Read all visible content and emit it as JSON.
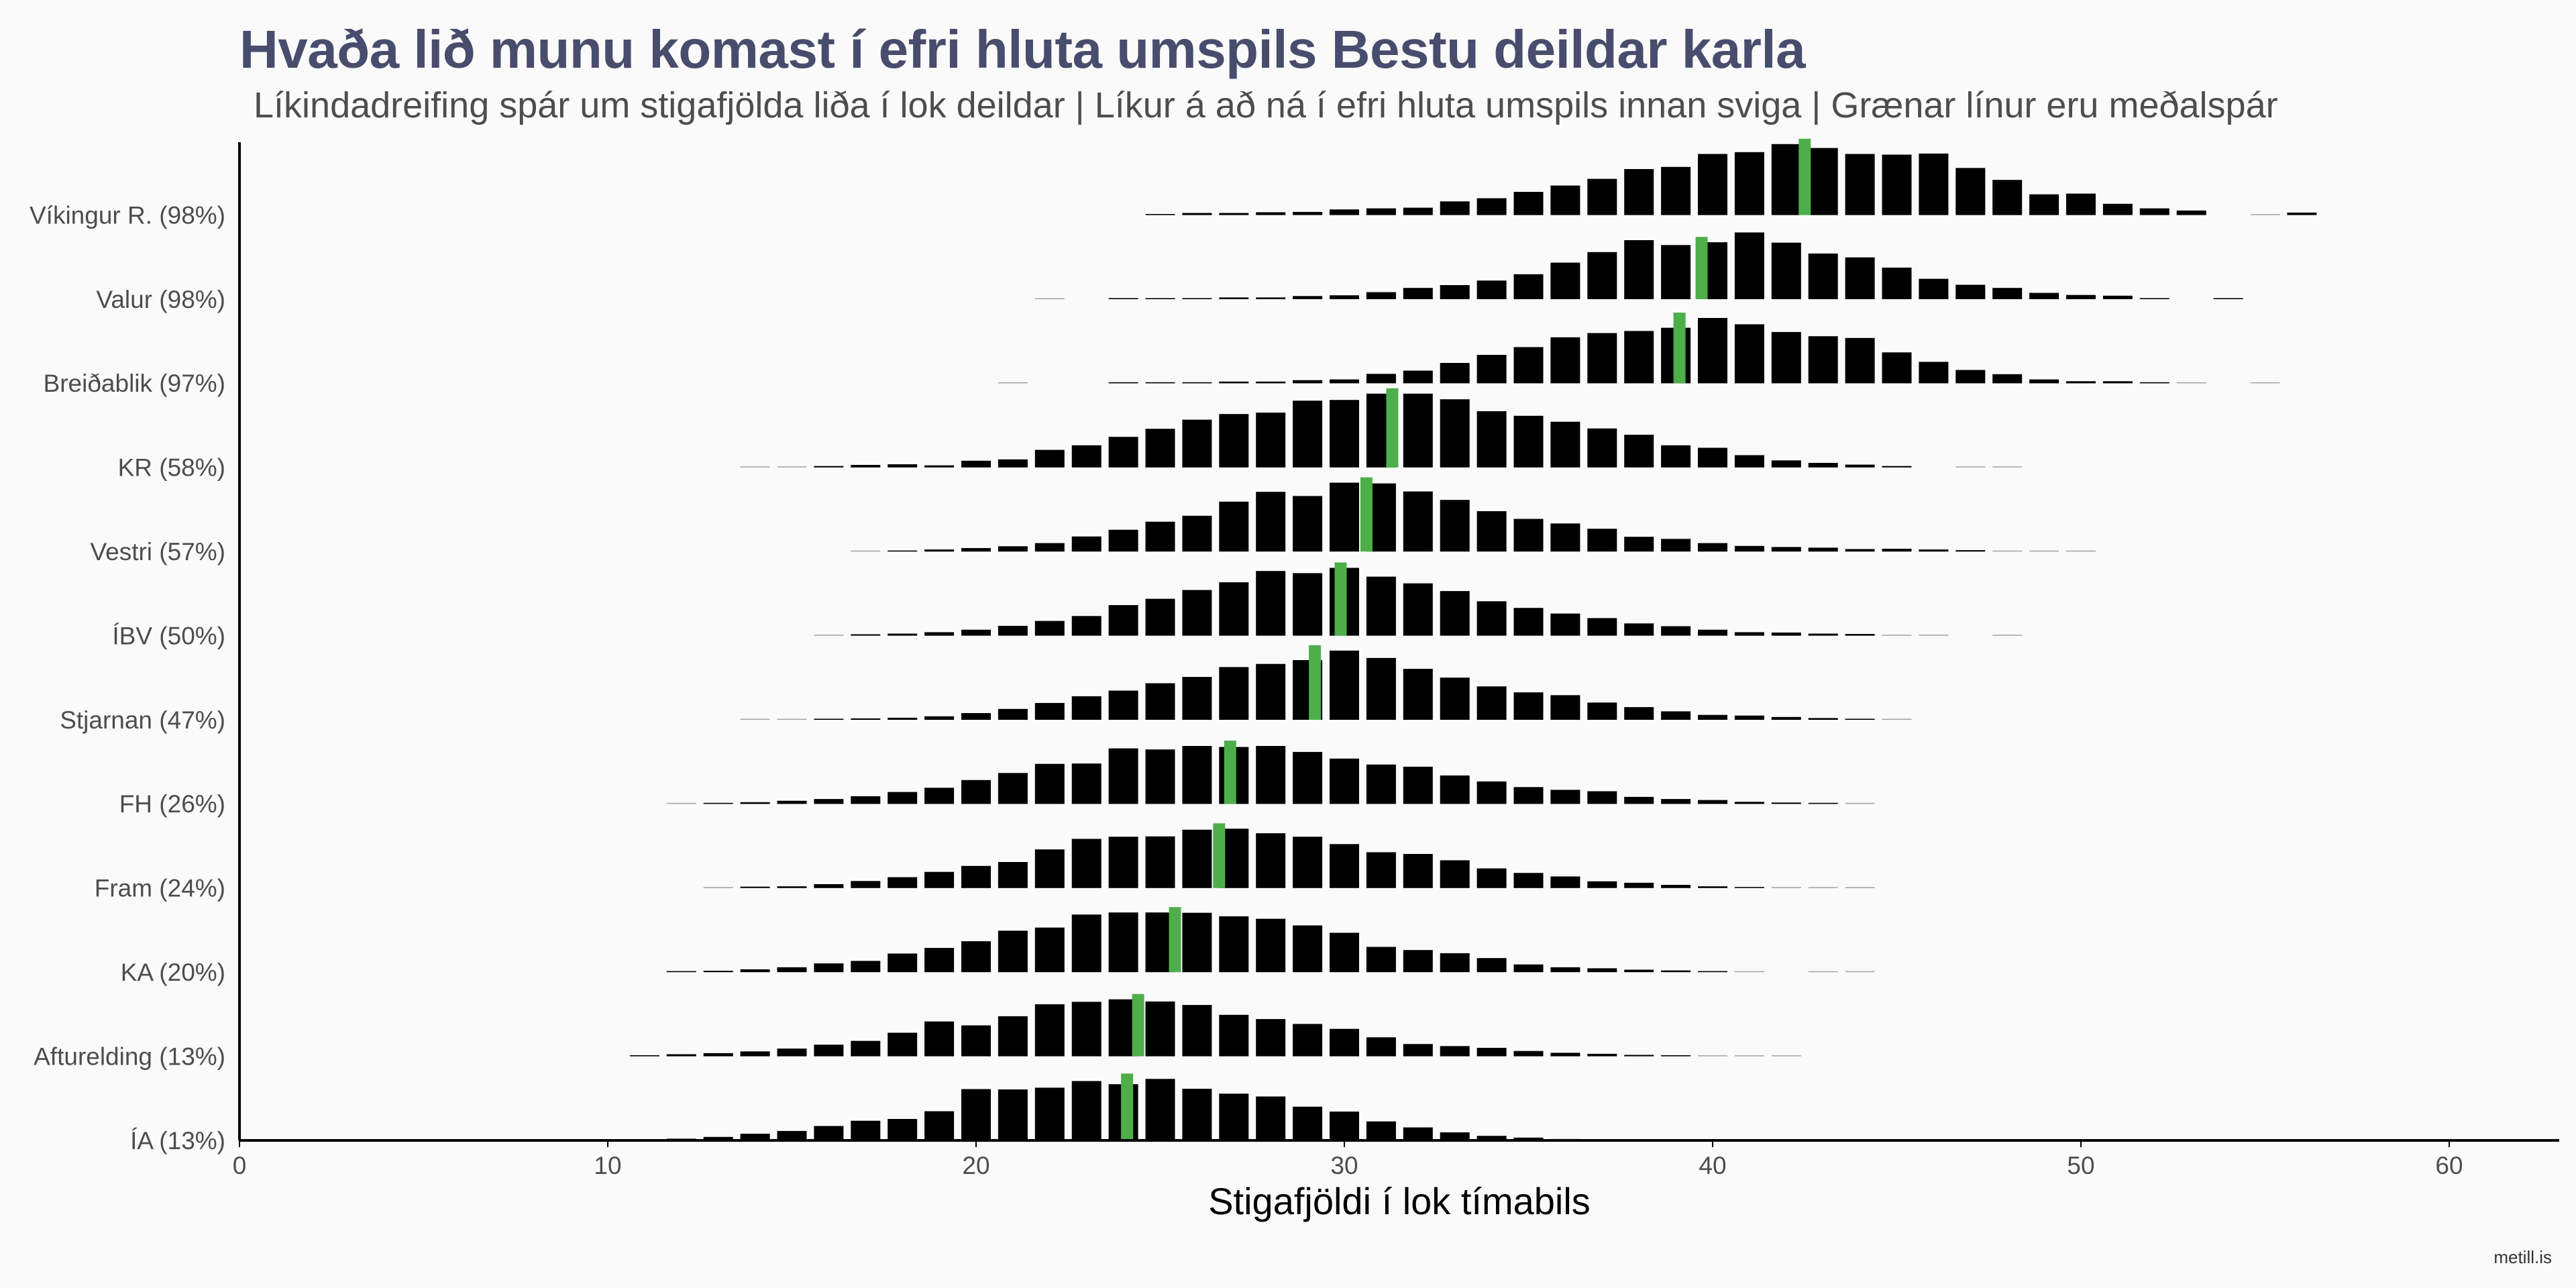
{
  "title": "Hvaða lið munu komast í efri hluta umspils Bestu deildar karla",
  "subtitle": "Líkindadreifing spár um stigafjölda liða í lok deildar | Líkur á að ná í efri hluta umspils innan sviga | Grænar línur eru meðalspár",
  "caption": "metill.is",
  "colors": {
    "bar": "#000000",
    "mean": "#4daf4a",
    "background": "#fafafa",
    "title": "#484d6d"
  },
  "chart_data": {
    "type": "bar",
    "xlabel": "Stigafjöldi í lok tímabils",
    "xlim": [
      0,
      63
    ],
    "xticks": [
      0,
      10,
      20,
      30,
      40,
      50,
      60
    ],
    "grid": false,
    "teams": [
      {
        "label": "Víkingur R. (98%)",
        "mean": 42.5,
        "points": [
          25,
          26,
          27,
          28,
          29,
          30,
          31,
          32,
          33,
          34,
          35,
          36,
          37,
          38,
          39,
          40,
          41,
          42,
          43,
          44,
          45,
          46,
          47,
          48,
          49,
          50,
          51,
          52,
          53,
          55,
          56
        ],
        "values": [
          0.3,
          0.6,
          0.6,
          0.8,
          0.9,
          1.6,
          1.9,
          2.1,
          3.9,
          4.8,
          6.6,
          8.4,
          10.3,
          13.1,
          13.7,
          17.4,
          17.9,
          20.2,
          19.1,
          17.4,
          17.2,
          17.5,
          13.4,
          10.0,
          5.9,
          6.1,
          3.2,
          1.9,
          1.3,
          0.1,
          0.7
        ]
      },
      {
        "label": "Valur (98%)",
        "mean": 39.7,
        "points": [
          22,
          24,
          25,
          26,
          27,
          28,
          29,
          30,
          31,
          32,
          33,
          34,
          35,
          36,
          37,
          38,
          39,
          40,
          41,
          42,
          43,
          44,
          45,
          46,
          47,
          48,
          49,
          50,
          51,
          52,
          54
        ],
        "values": [
          0.1,
          0.3,
          0.3,
          0.3,
          0.5,
          0.5,
          0.9,
          1.1,
          2.0,
          3.2,
          4.0,
          5.3,
          7.1,
          10.4,
          13.4,
          16.8,
          15.4,
          16.2,
          19.0,
          16.1,
          13.0,
          11.9,
          9.0,
          5.8,
          4.1,
          3.2,
          1.8,
          1.2,
          1.0,
          0.3,
          0.3
        ]
      },
      {
        "label": "Breiðablik (97%)",
        "mean": 39.1,
        "points": [
          21,
          24,
          25,
          26,
          27,
          28,
          29,
          30,
          31,
          32,
          33,
          34,
          35,
          36,
          37,
          38,
          39,
          40,
          41,
          42,
          43,
          44,
          45,
          46,
          47,
          48,
          49,
          50,
          51,
          52,
          53,
          55
        ],
        "values": [
          0.1,
          0.3,
          0.3,
          0.3,
          0.5,
          0.5,
          0.9,
          1.1,
          2.7,
          3.6,
          5.8,
          8.1,
          10.3,
          13.1,
          14.3,
          14.9,
          15.8,
          18.6,
          16.8,
          14.6,
          13.4,
          12.9,
          8.8,
          6.1,
          3.8,
          2.6,
          1.1,
          0.6,
          0.6,
          0.3,
          0.2,
          0.1
        ]
      },
      {
        "label": "KR (58%)",
        "mean": 31.3,
        "points": [
          14,
          15,
          16,
          17,
          18,
          19,
          20,
          21,
          22,
          23,
          24,
          25,
          26,
          27,
          28,
          29,
          30,
          31,
          32,
          33,
          34,
          35,
          36,
          37,
          38,
          39,
          40,
          41,
          42,
          43,
          44,
          45,
          47,
          48
        ],
        "values": [
          0.1,
          0.1,
          0.4,
          0.7,
          0.9,
          0.6,
          1.9,
          2.3,
          5.0,
          6.3,
          8.7,
          11.0,
          13.6,
          15.2,
          15.6,
          19.0,
          19.2,
          21.0,
          21.0,
          19.4,
          16.0,
          14.7,
          13.0,
          11.1,
          9.3,
          6.3,
          5.6,
          3.5,
          2.0,
          1.3,
          0.8,
          0.4,
          0.1,
          0.1
        ]
      },
      {
        "label": "Vestri (57%)",
        "mean": 30.6,
        "points": [
          17,
          18,
          19,
          20,
          21,
          22,
          23,
          24,
          25,
          26,
          27,
          28,
          29,
          30,
          31,
          32,
          33,
          34,
          35,
          36,
          37,
          38,
          39,
          40,
          41,
          42,
          43,
          44,
          45,
          46,
          47,
          48,
          49,
          50
        ],
        "values": [
          0.2,
          0.3,
          0.6,
          1.0,
          1.5,
          2.4,
          4.3,
          6.2,
          8.5,
          10.2,
          14.2,
          17.0,
          15.8,
          19.6,
          19.4,
          17.1,
          14.7,
          11.5,
          9.3,
          8.0,
          6.5,
          4.2,
          3.6,
          2.4,
          1.6,
          1.3,
          1.1,
          0.7,
          0.8,
          0.6,
          0.4,
          0.2,
          0.2,
          0.1
        ]
      },
      {
        "label": "ÍBV (50%)",
        "mean": 29.9,
        "points": [
          16,
          17,
          18,
          19,
          20,
          21,
          22,
          23,
          24,
          25,
          26,
          27,
          28,
          29,
          30,
          31,
          32,
          33,
          34,
          35,
          36,
          37,
          38,
          39,
          40,
          41,
          42,
          43,
          44,
          45,
          46,
          48
        ],
        "values": [
          0.2,
          0.4,
          0.6,
          1.0,
          1.7,
          2.8,
          4.2,
          5.6,
          8.7,
          10.5,
          13.0,
          15.2,
          18.4,
          17.8,
          19.3,
          16.8,
          14.9,
          12.7,
          9.8,
          7.9,
          6.3,
          5.0,
          3.5,
          2.7,
          1.7,
          1.0,
          0.9,
          0.6,
          0.5,
          0.2,
          0.1,
          0.1
        ]
      },
      {
        "label": "Stjarnan (47%)",
        "mean": 29.2,
        "points": [
          14,
          15,
          16,
          17,
          18,
          19,
          20,
          21,
          22,
          23,
          24,
          25,
          26,
          27,
          28,
          29,
          30,
          31,
          32,
          33,
          34,
          35,
          36,
          37,
          38,
          39,
          40,
          41,
          42,
          43,
          44,
          45
        ],
        "values": [
          0.1,
          0.2,
          0.3,
          0.4,
          0.6,
          1.0,
          1.9,
          3.1,
          4.8,
          6.7,
          8.3,
          10.4,
          12.2,
          15.0,
          15.9,
          17.0,
          19.7,
          17.6,
          14.5,
          12.0,
          9.5,
          7.8,
          7.0,
          4.9,
          3.6,
          2.4,
          1.4,
          1.2,
          0.8,
          0.5,
          0.3,
          0.2
        ]
      },
      {
        "label": "FH (26%)",
        "mean": 26.9,
        "points": [
          12,
          13,
          14,
          15,
          16,
          17,
          18,
          19,
          20,
          21,
          22,
          23,
          24,
          25,
          26,
          27,
          28,
          29,
          30,
          31,
          32,
          33,
          34,
          35,
          36,
          37,
          38,
          39,
          40,
          41,
          42,
          43,
          44
        ],
        "values": [
          0.2,
          0.3,
          0.5,
          0.9,
          1.4,
          2.2,
          3.4,
          4.6,
          6.8,
          8.8,
          11.4,
          11.5,
          15.8,
          15.5,
          16.5,
          16.2,
          16.5,
          14.8,
          12.9,
          11.2,
          10.6,
          8.1,
          6.4,
          4.8,
          4.0,
          3.6,
          2.0,
          1.4,
          1.1,
          0.6,
          0.4,
          0.3,
          0.2
        ]
      },
      {
        "label": "Fram (24%)",
        "mean": 26.6,
        "points": [
          13,
          14,
          15,
          16,
          17,
          18,
          19,
          20,
          21,
          22,
          23,
          24,
          25,
          26,
          27,
          28,
          29,
          30,
          31,
          32,
          33,
          34,
          35,
          36,
          37,
          38,
          39,
          40,
          41,
          42,
          43,
          44
        ],
        "values": [
          0.2,
          0.4,
          0.5,
          1.1,
          2.0,
          3.1,
          4.6,
          6.3,
          7.4,
          11.0,
          14.0,
          14.6,
          14.7,
          16.6,
          16.9,
          15.6,
          14.6,
          12.5,
          10.2,
          9.7,
          7.9,
          5.6,
          4.3,
          3.3,
          1.9,
          1.5,
          0.9,
          0.5,
          0.3,
          0.2,
          0.1,
          0.1
        ]
      },
      {
        "label": "KA (20%)",
        "mean": 25.4,
        "points": [
          12,
          13,
          14,
          15,
          16,
          17,
          18,
          19,
          20,
          21,
          22,
          23,
          24,
          25,
          26,
          27,
          28,
          29,
          30,
          31,
          32,
          33,
          34,
          35,
          36,
          37,
          38,
          39,
          40,
          41,
          43,
          44
        ],
        "values": [
          0.3,
          0.4,
          0.8,
          1.4,
          2.5,
          3.2,
          5.3,
          6.9,
          8.8,
          11.8,
          12.7,
          16.4,
          17.0,
          17.0,
          16.9,
          15.9,
          15.2,
          13.3,
          11.2,
          7.2,
          6.3,
          5.4,
          4.0,
          2.2,
          1.4,
          1.1,
          0.7,
          0.5,
          0.3,
          0.2,
          0.1,
          0.1
        ]
      },
      {
        "label": "Afturelding (13%)",
        "mean": 24.4,
        "points": [
          11,
          12,
          13,
          14,
          15,
          16,
          17,
          18,
          19,
          20,
          21,
          22,
          23,
          24,
          25,
          26,
          27,
          28,
          29,
          30,
          31,
          32,
          33,
          34,
          35,
          36,
          37,
          38,
          39,
          40,
          41,
          42
        ],
        "values": [
          0.3,
          0.6,
          0.9,
          1.4,
          2.2,
          3.3,
          4.4,
          6.7,
          9.9,
          8.8,
          11.4,
          14.8,
          15.5,
          16.2,
          15.6,
          14.6,
          11.8,
          10.6,
          9.2,
          7.8,
          5.4,
          3.5,
          2.9,
          2.4,
          1.5,
          1.0,
          0.7,
          0.4,
          0.3,
          0.2,
          0.1,
          0.1
        ]
      },
      {
        "label": "ÍA (13%)",
        "mean": 24.1,
        "points": [
          11,
          12,
          13,
          14,
          15,
          16,
          17,
          18,
          19,
          20,
          21,
          22,
          23,
          24,
          25,
          26,
          27,
          28,
          29,
          30,
          31,
          32,
          33,
          34,
          35,
          36,
          37,
          38
        ],
        "values": [
          0.3,
          0.5,
          1.0,
          1.9,
          2.7,
          4.1,
          5.6,
          6.1,
          8.3,
          14.6,
          14.5,
          15.0,
          16.9,
          16.0,
          17.5,
          14.7,
          13.3,
          12.5,
          9.6,
          8.2,
          5.4,
          3.7,
          2.3,
          1.3,
          0.8,
          0.4,
          0.3,
          0.1
        ]
      }
    ]
  }
}
